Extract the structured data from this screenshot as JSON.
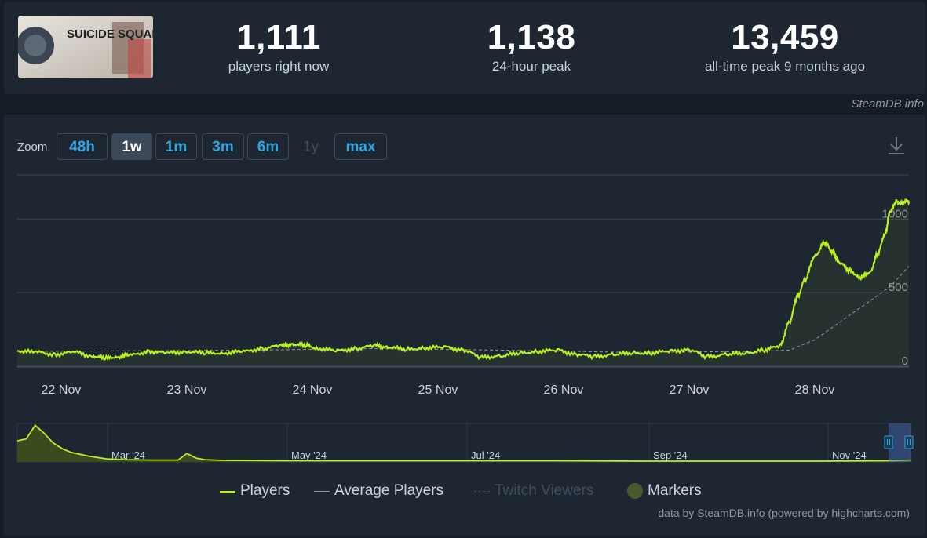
{
  "stats": {
    "current": {
      "value": "1,111",
      "label": "players right now"
    },
    "peak24": {
      "value": "1,138",
      "label": "24-hour peak"
    },
    "alltime": {
      "value": "13,459",
      "label": "all-time peak 9 months ago"
    }
  },
  "game_thumbnail": {
    "text": "SUICIDE SQUAD"
  },
  "credit_top": "SteamDB.info",
  "zoom": {
    "label": "Zoom",
    "buttons": [
      {
        "label": "48h",
        "state": "normal"
      },
      {
        "label": "1w",
        "state": "active"
      },
      {
        "label": "1m",
        "state": "normal"
      },
      {
        "label": "3m",
        "state": "normal"
      },
      {
        "label": "6m",
        "state": "normal"
      },
      {
        "label": "1y",
        "state": "disabled"
      },
      {
        "label": "max",
        "state": "normal"
      }
    ]
  },
  "download_icon": "download-icon",
  "colors": {
    "players": "#b8f020",
    "average": "#8f98a0",
    "twitch": "#3e4e60",
    "markers": "#4b5a2a",
    "grid": "#3a4553",
    "label": "#c6d4df"
  },
  "chart_data": {
    "type": "line",
    "title": "",
    "xlabel": "",
    "ylabel": "",
    "ylim": [
      0,
      1300
    ],
    "yticks": [
      0,
      500,
      1000
    ],
    "yticks_labels": [
      "0",
      "500",
      "1000"
    ],
    "xticks": [
      "22 Nov",
      "23 Nov",
      "24 Nov",
      "25 Nov",
      "26 Nov",
      "27 Nov",
      "28 Nov"
    ],
    "xlim_days": [
      21.65,
      28.75
    ],
    "grid": true,
    "series": [
      {
        "name": "Players",
        "x": [
          21.65,
          21.8,
          21.95,
          22.1,
          22.25,
          22.35,
          22.45,
          22.55,
          22.7,
          22.85,
          23.0,
          23.15,
          23.3,
          23.45,
          23.6,
          23.75,
          23.85,
          23.95,
          24.05,
          24.2,
          24.35,
          24.5,
          24.6,
          24.75,
          24.9,
          25.05,
          25.2,
          25.35,
          25.5,
          25.65,
          25.8,
          25.95,
          26.1,
          26.25,
          26.4,
          26.55,
          26.7,
          26.85,
          27.0,
          27.15,
          27.3,
          27.45,
          27.6,
          27.72,
          27.8,
          27.86,
          27.92,
          28.0,
          28.08,
          28.14,
          28.2,
          28.28,
          28.36,
          28.44,
          28.5,
          28.56,
          28.6,
          28.65,
          28.7,
          28.73,
          28.75
        ],
        "y": [
          105,
          95,
          80,
          95,
          70,
          55,
          65,
          75,
          100,
          90,
          100,
          90,
          90,
          100,
          120,
          140,
          150,
          140,
          120,
          105,
          120,
          140,
          130,
          115,
          125,
          130,
          110,
          60,
          70,
          90,
          100,
          110,
          80,
          65,
          80,
          90,
          90,
          105,
          110,
          65,
          80,
          90,
          110,
          140,
          300,
          470,
          580,
          750,
          840,
          780,
          700,
          650,
          600,
          640,
          760,
          900,
          1050,
          1120,
          1100,
          1130,
          1110
        ]
      },
      {
        "name": "Average Players",
        "x": [
          21.65,
          22.5,
          23.5,
          24.5,
          25.5,
          26.5,
          27.5,
          27.8,
          28.0,
          28.2,
          28.4,
          28.6,
          28.75
        ],
        "y": [
          100,
          105,
          110,
          120,
          110,
          95,
          100,
          110,
          180,
          300,
          420,
          540,
          680
        ]
      }
    ],
    "navigator": {
      "labels": [
        "Mar '24",
        "May '24",
        "Jul '24",
        "Sep '24",
        "Nov '24"
      ],
      "series": {
        "x": [
          0,
          0.01,
          0.02,
          0.03,
          0.04,
          0.05,
          0.06,
          0.08,
          0.1,
          0.12,
          0.15,
          0.18,
          0.19,
          0.2,
          0.21,
          0.23,
          0.3,
          0.4,
          0.5,
          0.6,
          0.7,
          0.8,
          0.9,
          0.98,
          1.0
        ],
        "y": [
          0.55,
          0.6,
          0.95,
          0.75,
          0.5,
          0.35,
          0.25,
          0.15,
          0.08,
          0.06,
          0.05,
          0.05,
          0.22,
          0.1,
          0.06,
          0.04,
          0.03,
          0.03,
          0.03,
          0.03,
          0.02,
          0.02,
          0.02,
          0.03,
          0.05
        ]
      }
    },
    "legend": [
      {
        "name": "Players",
        "visible": true
      },
      {
        "name": "Average Players",
        "visible": true
      },
      {
        "name": "Twitch Viewers",
        "visible": false
      },
      {
        "name": "Markers",
        "visible": true
      }
    ],
    "legend_placement": "bottom-center"
  },
  "credit_bottom": "data by SteamDB.info (powered by highcharts.com)"
}
